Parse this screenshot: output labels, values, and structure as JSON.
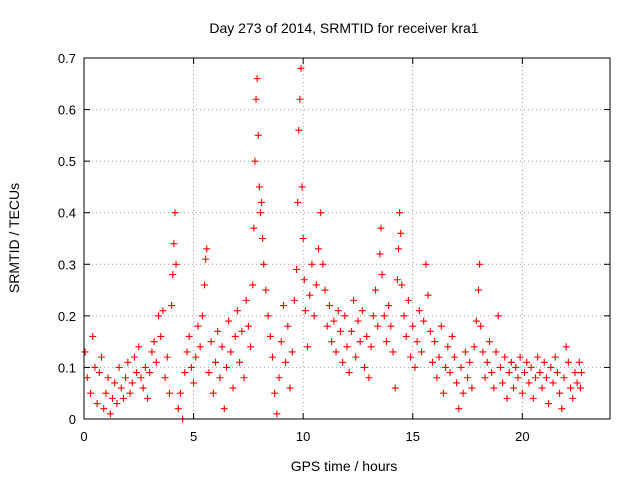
{
  "chart_data": {
    "type": "scatter",
    "title": "Day 273 of 2014, SRMTID for receiver kra1",
    "xlabel": "GPS time / hours",
    "ylabel": "SRMTID / TECUs",
    "xlim": [
      0,
      24
    ],
    "ylim": [
      0,
      0.7
    ],
    "x_ticks": [
      0,
      5,
      10,
      15,
      20
    ],
    "y_ticks": [
      0,
      0.1,
      0.2,
      0.3,
      0.4,
      0.5,
      0.6,
      0.7
    ],
    "x_tick_labels": [
      "0",
      "5",
      "10",
      "15",
      "20"
    ],
    "y_tick_labels": [
      "0",
      "0.1",
      "0.2",
      "0.3",
      "0.4",
      "0.5",
      "0.6",
      "0.7"
    ],
    "grid": true,
    "marker": "plus",
    "color": "#ff0000",
    "series": [
      {
        "name": "SRMTID",
        "points": [
          [
            0.05,
            0.13
          ],
          [
            0.15,
            0.08
          ],
          [
            0.3,
            0.05
          ],
          [
            0.4,
            0.16
          ],
          [
            0.5,
            0.1
          ],
          [
            0.6,
            0.03
          ],
          [
            0.7,
            0.09
          ],
          [
            0.8,
            0.12
          ],
          [
            0.9,
            0.02
          ],
          [
            1.0,
            0.05
          ],
          [
            1.1,
            0.08
          ],
          [
            1.2,
            0.01
          ],
          [
            1.3,
            0.04
          ],
          [
            1.4,
            0.07
          ],
          [
            1.5,
            0.03
          ],
          [
            1.6,
            0.1
          ],
          [
            1.7,
            0.06
          ],
          [
            1.8,
            0.04
          ],
          [
            1.9,
            0.08
          ],
          [
            2.0,
            0.11
          ],
          [
            2.1,
            0.05
          ],
          [
            2.2,
            0.07
          ],
          [
            2.3,
            0.12
          ],
          [
            2.4,
            0.09
          ],
          [
            2.5,
            0.14
          ],
          [
            2.6,
            0.08
          ],
          [
            2.7,
            0.06
          ],
          [
            2.8,
            0.1
          ],
          [
            2.9,
            0.04
          ],
          [
            3.0,
            0.09
          ],
          [
            3.1,
            0.13
          ],
          [
            3.2,
            0.15
          ],
          [
            3.3,
            0.11
          ],
          [
            3.4,
            0.2
          ],
          [
            3.5,
            0.16
          ],
          [
            3.6,
            0.21
          ],
          [
            3.7,
            0.08
          ],
          [
            3.8,
            0.12
          ],
          [
            3.9,
            0.05
          ],
          [
            4.0,
            0.22
          ],
          [
            4.05,
            0.28
          ],
          [
            4.1,
            0.34
          ],
          [
            4.15,
            0.4
          ],
          [
            4.2,
            0.3
          ],
          [
            4.3,
            0.02
          ],
          [
            4.4,
            0.05
          ],
          [
            4.5,
            0.0
          ],
          [
            4.6,
            0.09
          ],
          [
            4.7,
            0.13
          ],
          [
            4.8,
            0.16
          ],
          [
            4.9,
            0.1
          ],
          [
            5.0,
            0.07
          ],
          [
            5.1,
            0.12
          ],
          [
            5.2,
            0.18
          ],
          [
            5.3,
            0.14
          ],
          [
            5.4,
            0.2
          ],
          [
            5.5,
            0.26
          ],
          [
            5.55,
            0.31
          ],
          [
            5.6,
            0.33
          ],
          [
            5.7,
            0.09
          ],
          [
            5.8,
            0.15
          ],
          [
            5.9,
            0.05
          ],
          [
            6.0,
            0.11
          ],
          [
            6.1,
            0.17
          ],
          [
            6.2,
            0.08
          ],
          [
            6.3,
            0.14
          ],
          [
            6.4,
            0.02
          ],
          [
            6.5,
            0.1
          ],
          [
            6.6,
            0.19
          ],
          [
            6.7,
            0.13
          ],
          [
            6.8,
            0.06
          ],
          [
            6.9,
            0.16
          ],
          [
            7.0,
            0.21
          ],
          [
            7.1,
            0.11
          ],
          [
            7.2,
            0.17
          ],
          [
            7.3,
            0.08
          ],
          [
            7.4,
            0.23
          ],
          [
            7.5,
            0.18
          ],
          [
            7.6,
            0.14
          ],
          [
            7.7,
            0.26
          ],
          [
            7.75,
            0.37
          ],
          [
            7.8,
            0.5
          ],
          [
            7.85,
            0.62
          ],
          [
            7.9,
            0.66
          ],
          [
            7.95,
            0.55
          ],
          [
            8.0,
            0.45
          ],
          [
            8.05,
            0.4
          ],
          [
            8.1,
            0.42
          ],
          [
            8.15,
            0.35
          ],
          [
            8.2,
            0.3
          ],
          [
            8.3,
            0.25
          ],
          [
            8.4,
            0.2
          ],
          [
            8.5,
            0.16
          ],
          [
            8.6,
            0.12
          ],
          [
            8.7,
            0.05
          ],
          [
            8.8,
            0.01
          ],
          [
            8.9,
            0.08
          ],
          [
            9.0,
            0.15
          ],
          [
            9.1,
            0.22
          ],
          [
            9.2,
            0.11
          ],
          [
            9.3,
            0.18
          ],
          [
            9.4,
            0.06
          ],
          [
            9.5,
            0.13
          ],
          [
            9.6,
            0.23
          ],
          [
            9.7,
            0.29
          ],
          [
            9.75,
            0.42
          ],
          [
            9.8,
            0.56
          ],
          [
            9.85,
            0.62
          ],
          [
            9.9,
            0.68
          ],
          [
            9.95,
            0.45
          ],
          [
            10.0,
            0.35
          ],
          [
            10.05,
            0.27
          ],
          [
            10.1,
            0.21
          ],
          [
            10.2,
            0.14
          ],
          [
            10.3,
            0.24
          ],
          [
            10.4,
            0.3
          ],
          [
            10.5,
            0.2
          ],
          [
            10.6,
            0.26
          ],
          [
            10.7,
            0.33
          ],
          [
            10.8,
            0.4
          ],
          [
            10.9,
            0.3
          ],
          [
            11.0,
            0.25
          ],
          [
            11.1,
            0.18
          ],
          [
            11.2,
            0.22
          ],
          [
            11.3,
            0.15
          ],
          [
            11.4,
            0.19
          ],
          [
            11.5,
            0.13
          ],
          [
            11.6,
            0.21
          ],
          [
            11.7,
            0.17
          ],
          [
            11.8,
            0.11
          ],
          [
            11.9,
            0.2
          ],
          [
            12.0,
            0.14
          ],
          [
            12.1,
            0.09
          ],
          [
            12.2,
            0.17
          ],
          [
            12.3,
            0.23
          ],
          [
            12.4,
            0.12
          ],
          [
            12.5,
            0.19
          ],
          [
            12.6,
            0.15
          ],
          [
            12.7,
            0.21
          ],
          [
            12.8,
            0.1
          ],
          [
            12.9,
            0.16
          ],
          [
            13.0,
            0.08
          ],
          [
            13.1,
            0.14
          ],
          [
            13.2,
            0.2
          ],
          [
            13.3,
            0.25
          ],
          [
            13.4,
            0.18
          ],
          [
            13.5,
            0.32
          ],
          [
            13.55,
            0.37
          ],
          [
            13.6,
            0.28
          ],
          [
            13.7,
            0.2
          ],
          [
            13.8,
            0.15
          ],
          [
            13.9,
            0.22
          ],
          [
            14.0,
            0.18
          ],
          [
            14.1,
            0.13
          ],
          [
            14.2,
            0.06
          ],
          [
            14.3,
            0.27
          ],
          [
            14.35,
            0.33
          ],
          [
            14.4,
            0.4
          ],
          [
            14.45,
            0.36
          ],
          [
            14.5,
            0.26
          ],
          [
            14.6,
            0.2
          ],
          [
            14.7,
            0.16
          ],
          [
            14.8,
            0.23
          ],
          [
            14.9,
            0.12
          ],
          [
            15.0,
            0.18
          ],
          [
            15.1,
            0.1
          ],
          [
            15.2,
            0.15
          ],
          [
            15.3,
            0.21
          ],
          [
            15.4,
            0.13
          ],
          [
            15.5,
            0.19
          ],
          [
            15.6,
            0.3
          ],
          [
            15.7,
            0.24
          ],
          [
            15.8,
            0.17
          ],
          [
            15.9,
            0.11
          ],
          [
            16.0,
            0.15
          ],
          [
            16.1,
            0.08
          ],
          [
            16.2,
            0.12
          ],
          [
            16.3,
            0.18
          ],
          [
            16.4,
            0.05
          ],
          [
            16.5,
            0.1
          ],
          [
            16.6,
            0.14
          ],
          [
            16.7,
            0.09
          ],
          [
            16.8,
            0.16
          ],
          [
            16.9,
            0.12
          ],
          [
            17.0,
            0.07
          ],
          [
            17.1,
            0.02
          ],
          [
            17.2,
            0.1
          ],
          [
            17.3,
            0.05
          ],
          [
            17.4,
            0.13
          ],
          [
            17.5,
            0.08
          ],
          [
            17.6,
            0.11
          ],
          [
            17.7,
            0.06
          ],
          [
            17.8,
            0.14
          ],
          [
            17.9,
            0.19
          ],
          [
            18.0,
            0.25
          ],
          [
            18.05,
            0.3
          ],
          [
            18.1,
            0.18
          ],
          [
            18.2,
            0.13
          ],
          [
            18.3,
            0.08
          ],
          [
            18.4,
            0.11
          ],
          [
            18.5,
            0.15
          ],
          [
            18.6,
            0.09
          ],
          [
            18.7,
            0.06
          ],
          [
            18.8,
            0.13
          ],
          [
            18.9,
            0.2
          ],
          [
            19.0,
            0.1
          ],
          [
            19.1,
            0.07
          ],
          [
            19.2,
            0.12
          ],
          [
            19.3,
            0.04
          ],
          [
            19.4,
            0.09
          ],
          [
            19.5,
            0.11
          ],
          [
            19.6,
            0.06
          ],
          [
            19.7,
            0.1
          ],
          [
            19.8,
            0.08
          ],
          [
            19.9,
            0.12
          ],
          [
            20.0,
            0.05
          ],
          [
            20.1,
            0.09
          ],
          [
            20.2,
            0.11
          ],
          [
            20.3,
            0.07
          ],
          [
            20.4,
            0.1
          ],
          [
            20.5,
            0.04
          ],
          [
            20.6,
            0.08
          ],
          [
            20.7,
            0.12
          ],
          [
            20.8,
            0.09
          ],
          [
            20.9,
            0.06
          ],
          [
            21.0,
            0.11
          ],
          [
            21.1,
            0.08
          ],
          [
            21.2,
            0.03
          ],
          [
            21.3,
            0.1
          ],
          [
            21.4,
            0.07
          ],
          [
            21.5,
            0.12
          ],
          [
            21.6,
            0.09
          ],
          [
            21.7,
            0.05
          ],
          [
            21.8,
            0.02
          ],
          [
            21.9,
            0.08
          ],
          [
            22.0,
            0.14
          ],
          [
            22.1,
            0.11
          ],
          [
            22.2,
            0.06
          ],
          [
            22.3,
            0.04
          ],
          [
            22.4,
            0.09
          ],
          [
            22.5,
            0.07
          ],
          [
            22.6,
            0.11
          ],
          [
            22.65,
            0.06
          ],
          [
            22.7,
            0.09
          ]
        ]
      }
    ]
  }
}
